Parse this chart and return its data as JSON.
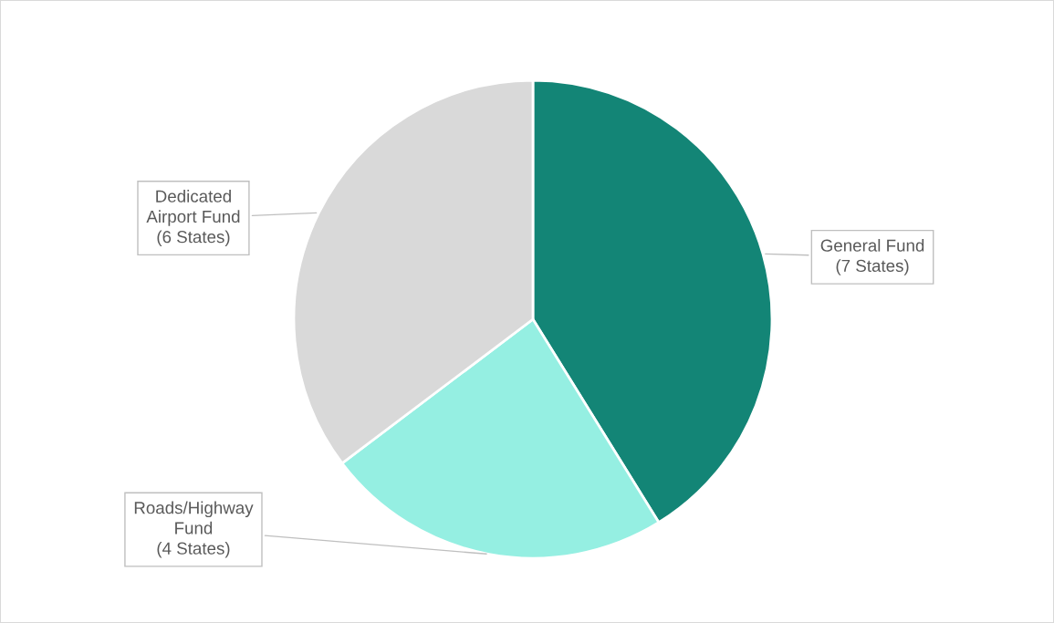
{
  "chart_data": {
    "type": "pie",
    "categories": [
      "General Fund\n(7 States)",
      "Roads/Highway\nFund\n(4 States)",
      "Dedicated\nAirport Fund\n(6 States)"
    ],
    "values": [
      7,
      4,
      6
    ],
    "colors": [
      "#138576",
      "#95efe2",
      "#d9d9d9"
    ],
    "legend": false
  }
}
